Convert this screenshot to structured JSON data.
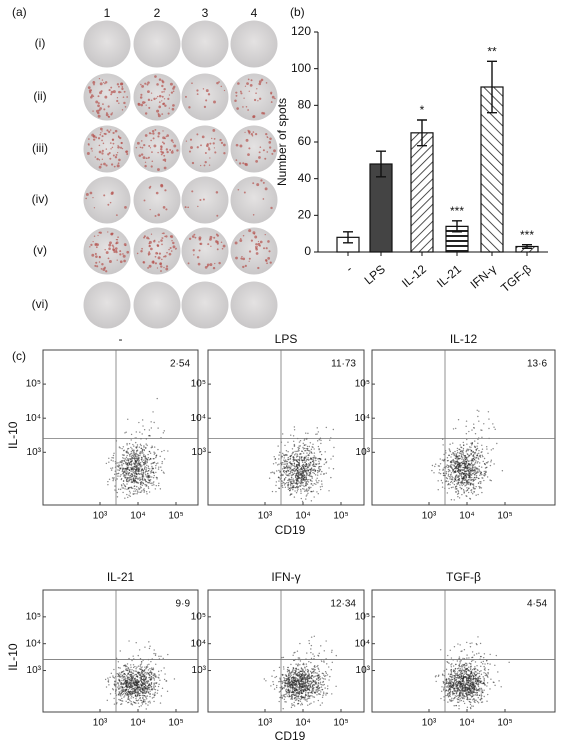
{
  "panel_a": {
    "label": "(a)",
    "columns": [
      "1",
      "2",
      "3",
      "4"
    ],
    "rows": [
      "(i)",
      "(ii)",
      "(iii)",
      "(iv)",
      "(v)",
      "(vi)"
    ]
  },
  "chart_data": {
    "type": "bar",
    "label": "(b)",
    "y_label": "Number of spots",
    "categories": [
      "-",
      "LPS",
      "IL-12",
      "IL-21",
      "IFN-γ",
      "TGF-β"
    ],
    "values": [
      8,
      48,
      65,
      14,
      90,
      3
    ],
    "errors": [
      3,
      7,
      7,
      3,
      14,
      1
    ],
    "significance": [
      null,
      null,
      "*",
      "***",
      "**",
      "***"
    ],
    "fills": [
      "white",
      "solid",
      "hatch",
      "hstripe",
      "hatch-back",
      "hatch"
    ],
    "color": "#444444",
    "ylim": [
      0,
      120
    ],
    "yticks": [
      0,
      20,
      40,
      60,
      80,
      100,
      120
    ]
  },
  "panel_c": {
    "label": "(c)",
    "y_label": "IL-10",
    "x_label": "CD19",
    "x_ticks": [
      "10³",
      "10⁴",
      "10⁵"
    ],
    "y_ticks": [
      "10⁵",
      "10⁴",
      "10³"
    ],
    "plots": [
      {
        "title": "-",
        "value": "2·54"
      },
      {
        "title": "LPS",
        "value": "11·73"
      },
      {
        "title": "IL-12",
        "value": "13·6"
      },
      {
        "title": "IL-21",
        "value": "9·9"
      },
      {
        "title": "IFN-γ",
        "value": "12·34"
      },
      {
        "title": "TGF-β",
        "value": "4·54"
      }
    ]
  }
}
